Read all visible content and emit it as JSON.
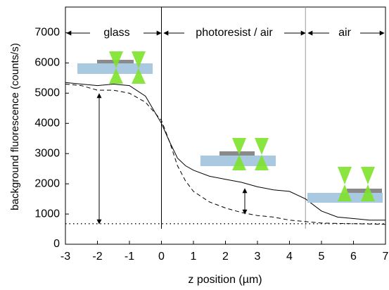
{
  "chart_data": {
    "type": "line",
    "xlabel": "z position (µm)",
    "ylabel": "background fluorescence (counts/s)",
    "regions": [
      "glass",
      "photoresist / air",
      "air"
    ],
    "boundaries": [
      0,
      4.5
    ],
    "x": [
      -3,
      -2.5,
      -2,
      -1.5,
      -1,
      -0.5,
      0,
      0.25,
      0.5,
      0.75,
      1,
      1.5,
      2,
      2.5,
      3,
      3.5,
      4,
      4.5,
      5,
      5.5,
      6,
      6.5,
      7
    ],
    "series": [
      {
        "color": "#000000",
        "dash": "solid",
        "values": [
          5350,
          5300,
          5250,
          5300,
          5250,
          4900,
          4000,
          3400,
          2850,
          2600,
          2450,
          2250,
          2150,
          2050,
          1900,
          1800,
          1750,
          1500,
          1100,
          900,
          850,
          800,
          800
        ]
      },
      {
        "color": "#000000",
        "dash": "dashed",
        "values": [
          5300,
          5250,
          5100,
          5100,
          5000,
          4700,
          4100,
          3400,
          2600,
          2100,
          1750,
          1400,
          1200,
          1050,
          950,
          900,
          800,
          750,
          700,
          690,
          680,
          670,
          660
        ]
      },
      {
        "color": "#000000",
        "dash": "dotted",
        "values": [
          680,
          680,
          680,
          680,
          680,
          680,
          680,
          680,
          680,
          680,
          680,
          680,
          680,
          680,
          680,
          680,
          680,
          680,
          680,
          680,
          680,
          680,
          680
        ]
      }
    ],
    "xlim": [
      -3,
      7
    ],
    "xticks": [
      -3,
      -2,
      -1,
      0,
      1,
      2,
      3,
      4,
      5,
      6,
      7
    ],
    "ylim": [
      0,
      7850
    ],
    "yticks": [
      0,
      1000,
      2000,
      3000,
      4000,
      5000,
      6000,
      7000
    ]
  }
}
